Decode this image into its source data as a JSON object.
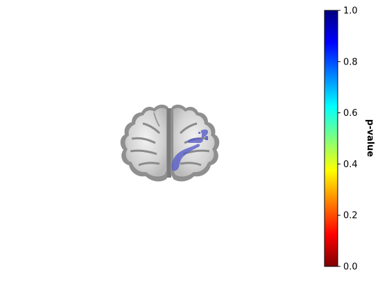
{
  "figure": {
    "type": "brain-overlay",
    "background": "#ffffff",
    "anatomy_colors": {
      "outer": "#8f8f8f",
      "gyri": "#cfcfcf",
      "highlight": "#efefef",
      "sulci": "#7a7a7a"
    },
    "overlay": {
      "color": "#5a5fc8",
      "opacity": 0.8,
      "hemisphere": "right"
    }
  },
  "colorbar": {
    "label": "p-value",
    "colormap": "jet_r",
    "range": [
      0.0,
      1.0
    ],
    "ticks": [
      "0.0",
      "0.2",
      "0.4",
      "0.6",
      "0.8",
      "1.0"
    ],
    "stops": [
      {
        "value": 0.0,
        "color": "#7f0000"
      },
      {
        "value": 0.125,
        "color": "#ff0000"
      },
      {
        "value": 0.375,
        "color": "#ffff00"
      },
      {
        "value": 0.5,
        "color": "#7fff7f"
      },
      {
        "value": 0.625,
        "color": "#00ffff"
      },
      {
        "value": 0.875,
        "color": "#0000ff"
      },
      {
        "value": 1.0,
        "color": "#00007f"
      }
    ]
  }
}
